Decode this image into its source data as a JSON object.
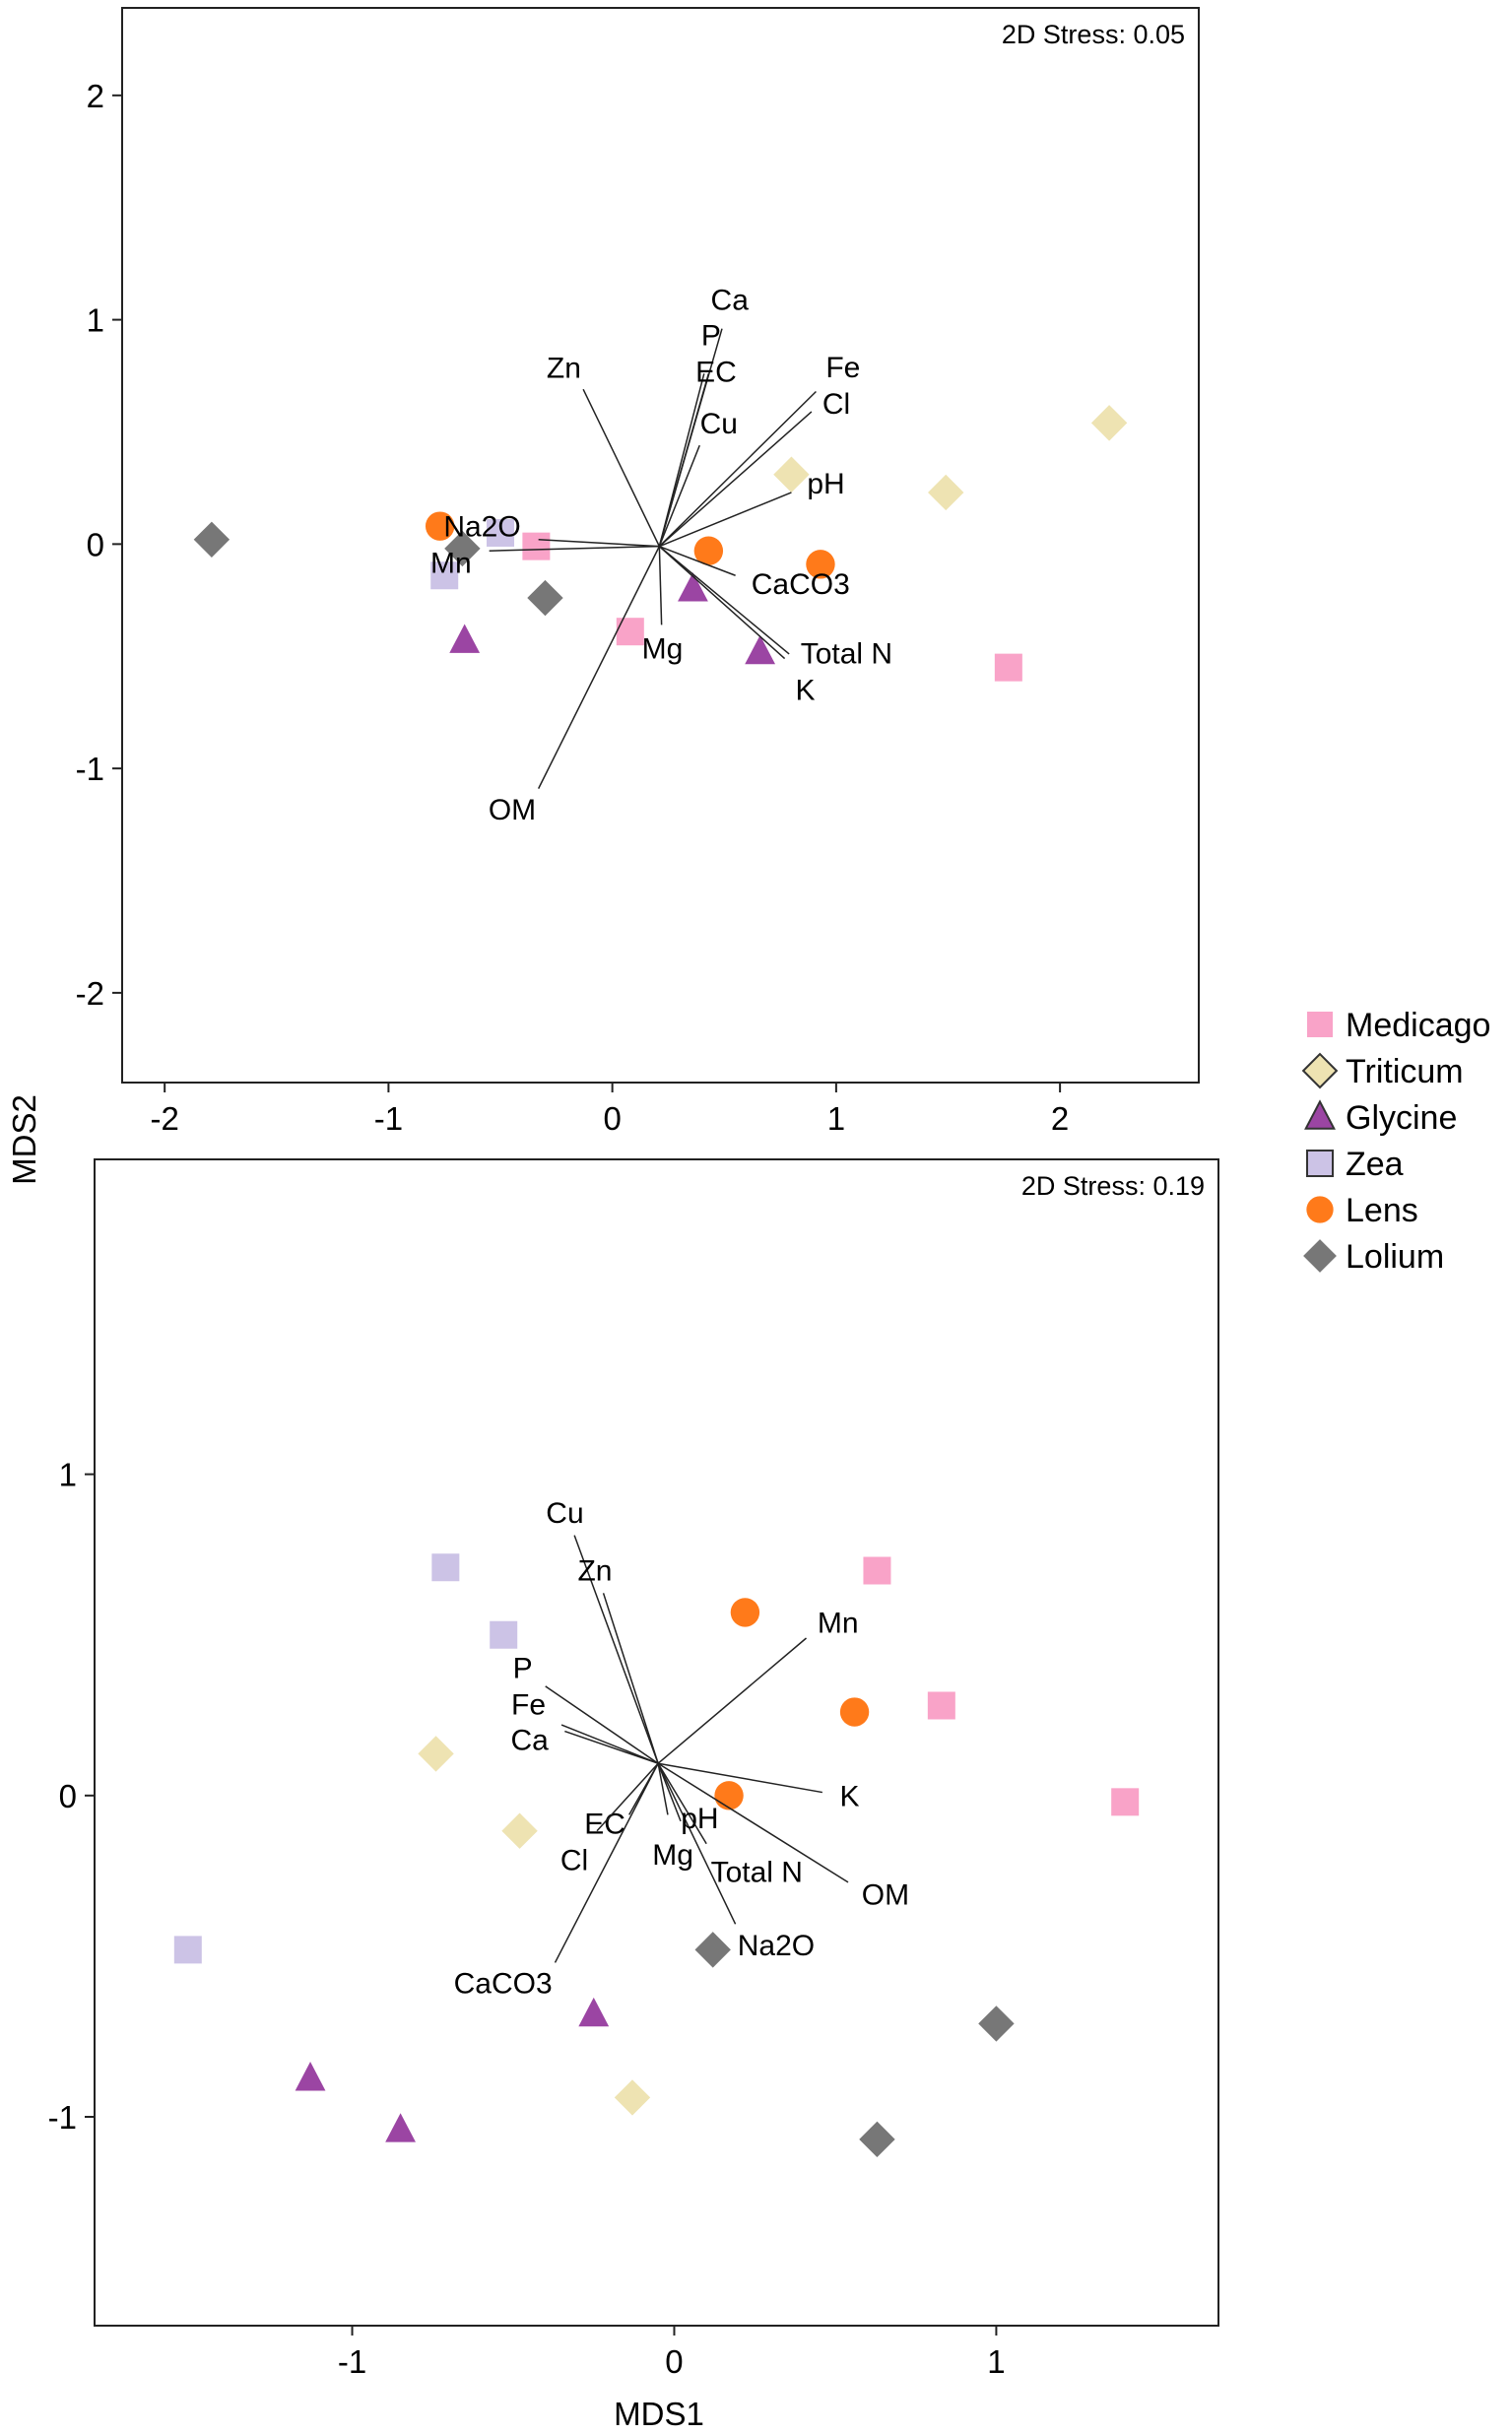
{
  "colors": {
    "Medicago": "#F9A3C8",
    "Triticum": "#EEE3B2",
    "Glycine": "#9B45A3",
    "Zea": "#CCC3E6",
    "Lens": "#FF7A1A",
    "Lolium": "#777777"
  },
  "legend": [
    "Medicago",
    "Triticum",
    "Glycine",
    "Zea",
    "Lens",
    "Lolium"
  ],
  "chart_data": [
    {
      "type": "scatter",
      "title": "",
      "annotation": "2D Stress: 0.05",
      "xlabel": "",
      "ylabel": "MDS2",
      "xlim": [
        -2.19,
        2.62
      ],
      "ylim": [
        -2.4,
        2.39
      ],
      "xticks": [
        -2,
        -1,
        0,
        1,
        2
      ],
      "yticks": [
        -2,
        -1,
        0,
        1,
        2
      ],
      "grid": false,
      "legend_position": "right-outside",
      "series": [
        {
          "name": "Medicago",
          "points": [
            [
              -0.34,
              -0.01
            ],
            [
              0.08,
              -0.39
            ],
            [
              1.77,
              -0.55
            ]
          ]
        },
        {
          "name": "Triticum",
          "points": [
            [
              0.8,
              0.31
            ],
            [
              1.49,
              0.23
            ],
            [
              2.22,
              0.54
            ]
          ]
        },
        {
          "name": "Glycine",
          "points": [
            [
              -0.66,
              -0.43
            ],
            [
              0.36,
              -0.2
            ],
            [
              0.66,
              -0.48
            ]
          ]
        },
        {
          "name": "Zea",
          "points": [
            [
              -0.5,
              0.05
            ],
            [
              -0.75,
              -0.14
            ]
          ]
        },
        {
          "name": "Lens",
          "points": [
            [
              -0.77,
              0.08
            ],
            [
              0.43,
              -0.03
            ],
            [
              0.93,
              -0.09
            ]
          ]
        },
        {
          "name": "Lolium",
          "points": [
            [
              -1.79,
              0.02
            ],
            [
              -0.67,
              -0.02
            ],
            [
              -0.3,
              -0.24
            ]
          ]
        }
      ],
      "vector_origin": [
        0.21,
        -0.01
      ],
      "vectors": [
        {
          "label": "Ca",
          "end": [
            0.49,
            0.96
          ]
        },
        {
          "label": "Zn",
          "end": [
            -0.13,
            0.69
          ]
        },
        {
          "label": "P",
          "end": [
            0.41,
            0.76
          ]
        },
        {
          "label": "EC",
          "end": [
            0.43,
            0.76
          ]
        },
        {
          "label": "Cu",
          "end": [
            0.39,
            0.44
          ]
        },
        {
          "label": "Fe",
          "end": [
            0.91,
            0.68
          ]
        },
        {
          "label": "Cl",
          "end": [
            0.89,
            0.59
          ]
        },
        {
          "label": "pH",
          "end": [
            0.8,
            0.23
          ]
        },
        {
          "label": "Na2O",
          "end": [
            -0.33,
            0.02
          ]
        },
        {
          "label": "Mn",
          "end": [
            -0.55,
            -0.03
          ]
        },
        {
          "label": "CaCO3",
          "end": [
            0.55,
            -0.14
          ]
        },
        {
          "label": "Mg",
          "end": [
            0.22,
            -0.36
          ]
        },
        {
          "label": "K",
          "end": [
            0.77,
            -0.51
          ]
        },
        {
          "label": "Total N",
          "end": [
            0.79,
            -0.49
          ]
        },
        {
          "label": "OM",
          "end": [
            -0.33,
            -1.09
          ]
        }
      ]
    },
    {
      "type": "scatter",
      "title": "",
      "annotation": "2D Stress: 0.19",
      "xlabel": "MDS1",
      "ylabel": "",
      "xlim": [
        -1.8,
        1.69
      ],
      "ylim": [
        -1.65,
        1.98
      ],
      "xticks": [
        -1,
        0,
        1
      ],
      "yticks": [
        -1,
        0,
        1
      ],
      "grid": false,
      "series": [
        {
          "name": "Medicago",
          "points": [
            [
              0.63,
              0.7
            ],
            [
              0.83,
              0.28
            ],
            [
              1.4,
              -0.02
            ]
          ]
        },
        {
          "name": "Triticum",
          "points": [
            [
              -0.74,
              0.13
            ],
            [
              -0.48,
              -0.11
            ],
            [
              -0.13,
              -0.94
            ]
          ]
        },
        {
          "name": "Glycine",
          "points": [
            [
              -0.25,
              -0.68
            ],
            [
              -1.13,
              -0.88
            ],
            [
              -0.85,
              -1.04
            ]
          ]
        },
        {
          "name": "Zea",
          "points": [
            [
              -0.71,
              0.71
            ],
            [
              -0.53,
              0.5
            ],
            [
              -1.51,
              -0.48
            ]
          ]
        },
        {
          "name": "Lens",
          "points": [
            [
              0.22,
              0.57
            ],
            [
              0.56,
              0.26
            ],
            [
              0.17,
              0.0
            ]
          ]
        },
        {
          "name": "Lolium",
          "points": [
            [
              0.12,
              -0.48
            ],
            [
              1.0,
              -0.71
            ],
            [
              0.63,
              -1.07
            ]
          ]
        }
      ],
      "vector_origin": [
        -0.05,
        0.1
      ],
      "vectors": [
        {
          "label": "Cu",
          "end": [
            -0.31,
            0.81
          ]
        },
        {
          "label": "Zn",
          "end": [
            -0.22,
            0.63
          ]
        },
        {
          "label": "Mn",
          "end": [
            0.41,
            0.49
          ]
        },
        {
          "label": "P",
          "end": [
            -0.4,
            0.34
          ]
        },
        {
          "label": "Fe",
          "end": [
            -0.35,
            0.22
          ]
        },
        {
          "label": "Ca",
          "end": [
            -0.34,
            0.2
          ]
        },
        {
          "label": "K",
          "end": [
            0.46,
            0.01
          ]
        },
        {
          "label": "OM",
          "end": [
            0.54,
            -0.27
          ]
        },
        {
          "label": "Na2O",
          "end": [
            0.19,
            -0.4
          ]
        },
        {
          "label": "Total N",
          "end": [
            0.1,
            -0.15
          ]
        },
        {
          "label": "Mg",
          "end": [
            -0.02,
            -0.06
          ]
        },
        {
          "label": "pH",
          "end": [
            0.02,
            -0.08
          ]
        },
        {
          "label": "EC",
          "end": [
            -0.14,
            -0.06
          ]
        },
        {
          "label": "Cl",
          "end": [
            -0.24,
            -0.11
          ]
        },
        {
          "label": "CaCO3",
          "end": [
            -0.37,
            -0.52
          ]
        }
      ]
    }
  ]
}
